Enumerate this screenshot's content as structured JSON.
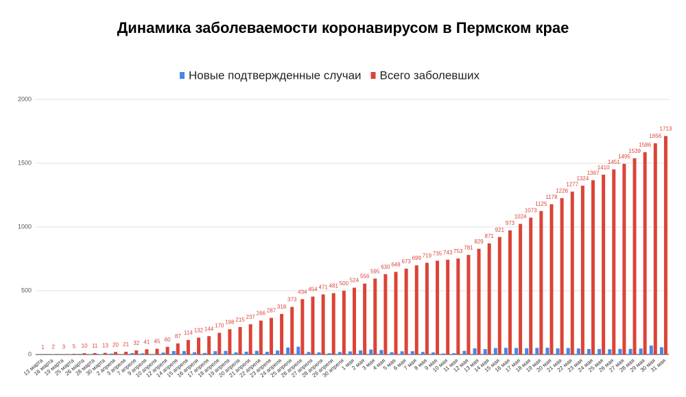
{
  "chart_data": {
    "type": "bar",
    "title": "Динамика заболеваемости коронавирусом в Пермском крае",
    "categories": [
      "13 марта",
      "16 марта",
      "19 марта",
      "25 марта",
      "26 марта",
      "28 марта",
      "30 марта",
      "2 апреля",
      "3 апреля",
      "7 апреля",
      "9 апреля",
      "10 апреля",
      "12 апреля",
      "14 апреля",
      "15 апреля",
      "16 апреля",
      "17 апреля",
      "18 апреля",
      "19 апреля",
      "20 апреля",
      "21 апреля",
      "22 апреля",
      "23 апреля",
      "24 апреля",
      "25 апреля",
      "26 апреля",
      "27 апреля",
      "28 апреля",
      "29 апреля",
      "30 апреля",
      "1 мая",
      "2 мая",
      "3 мая",
      "4 мая",
      "5 мая",
      "6 мая",
      "7 мая",
      "8 мая",
      "9 мая",
      "10 мая",
      "11 мая",
      "12 мая",
      "13 мая",
      "14 мая",
      "15 мая",
      "16 мая",
      "17 мая",
      "18 мая",
      "19 мая",
      "20 мая",
      "21 мая",
      "22 мая",
      "23 мая",
      "24 мая",
      "25 мая",
      "26 мая",
      "27 мая",
      "28 мая",
      "29 мая",
      "30 мая",
      "31 мая"
    ],
    "series": [
      {
        "name": "Новые подтвержденные случаи",
        "color": "#4a86e8",
        "values": [
          1,
          1,
          1,
          2,
          5,
          1,
          2,
          7,
          1,
          11,
          9,
          4,
          15,
          27,
          27,
          18,
          12,
          26,
          28,
          17,
          22,
          29,
          21,
          31,
          55,
          61,
          20,
          17,
          10,
          19,
          24,
          32,
          39,
          35,
          18,
          25,
          26,
          20,
          16,
          8,
          10,
          28,
          48,
          42,
          50,
          52,
          51,
          49,
          52,
          53,
          48,
          51,
          47,
          43,
          43,
          41,
          44,
          44,
          47,
          70,
          57
        ]
      },
      {
        "name": "Всего заболевших",
        "color": "#db4437",
        "show_labels": true,
        "values": [
          1,
          2,
          3,
          5,
          10,
          11,
          13,
          20,
          21,
          32,
          41,
          45,
          60,
          87,
          114,
          132,
          144,
          170,
          198,
          215,
          237,
          266,
          287,
          318,
          373,
          434,
          454,
          471,
          481,
          500,
          524,
          556,
          595,
          630,
          648,
          673,
          699,
          719,
          735,
          743,
          753,
          781,
          829,
          871,
          921,
          973,
          1024,
          1073,
          1125,
          1178,
          1226,
          1277,
          1324,
          1367,
          1410,
          1451,
          1495,
          1539,
          1586,
          1656,
          1713
        ]
      }
    ],
    "ylim": [
      0,
      2000
    ],
    "yticks": [
      0,
      500,
      1000,
      1500,
      2000
    ],
    "grid": true,
    "legend": "top"
  }
}
